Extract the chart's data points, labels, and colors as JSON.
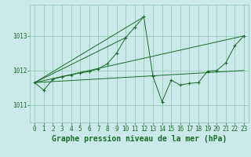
{
  "title": "Graphe pression niveau de la mer (hPa)",
  "bg_color": "#cce9e9",
  "grid_color": "#99ccbb",
  "line_color": "#1a6b2a",
  "xlim": [
    -0.5,
    23.5
  ],
  "ylim": [
    1010.5,
    1013.9
  ],
  "yticks": [
    1011,
    1012,
    1013
  ],
  "xticks": [
    0,
    1,
    2,
    3,
    4,
    5,
    6,
    7,
    8,
    9,
    10,
    11,
    12,
    13,
    14,
    15,
    16,
    17,
    18,
    19,
    20,
    21,
    22,
    23
  ],
  "series": [
    [
      0,
      1011.65
    ],
    [
      1,
      1011.43
    ],
    [
      2,
      1011.75
    ],
    [
      3,
      1011.82
    ],
    [
      4,
      1011.87
    ],
    [
      5,
      1011.93
    ],
    [
      6,
      1011.97
    ],
    [
      7,
      1012.05
    ],
    [
      8,
      1012.2
    ],
    [
      9,
      1012.5
    ],
    [
      10,
      1012.95
    ],
    [
      11,
      1013.25
    ],
    [
      12,
      1013.55
    ],
    [
      13,
      1011.83
    ],
    [
      14,
      1011.1
    ],
    [
      15,
      1011.72
    ],
    [
      16,
      1011.58
    ],
    [
      17,
      1011.63
    ],
    [
      18,
      1011.65
    ],
    [
      19,
      1011.98
    ],
    [
      20,
      1012.0
    ],
    [
      21,
      1012.22
    ],
    [
      22,
      1012.72
    ],
    [
      23,
      1013.0
    ]
  ],
  "extra_lines": [
    [
      [
        0,
        1011.65
      ],
      [
        23,
        1013.0
      ]
    ],
    [
      [
        0,
        1011.65
      ],
      [
        12,
        1013.55
      ]
    ],
    [
      [
        0,
        1011.65
      ],
      [
        10,
        1012.95
      ]
    ],
    [
      [
        0,
        1011.65
      ],
      [
        23,
        1012.0
      ]
    ]
  ],
  "tick_fontsize": 5.5,
  "title_fontsize": 7.0
}
